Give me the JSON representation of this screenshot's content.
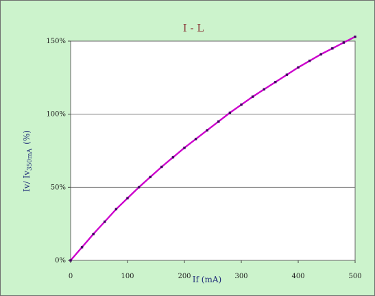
{
  "chart_data": {
    "type": "line",
    "title": "I - L",
    "xlabel": "If (mA)",
    "ylabel": {
      "main": "Iv/ Iv",
      "subscript": "350mA",
      "suffix": "(%)"
    },
    "xlim": [
      0,
      500
    ],
    "ylim": [
      0,
      150
    ],
    "x_ticks": [
      0,
      100,
      200,
      300,
      400,
      500
    ],
    "x_tick_labels": [
      "0",
      "100",
      "200",
      "300",
      "400",
      "500"
    ],
    "y_ticks": [
      0,
      50,
      100,
      150
    ],
    "y_tick_labels": [
      "0%",
      "50%",
      "100%",
      "150%"
    ],
    "grid": "horizontal",
    "series": [
      {
        "color": "#cc00cc",
        "marker_color": "#400060",
        "x": [
          0,
          20,
          40,
          60,
          80,
          100,
          120,
          140,
          160,
          180,
          200,
          220,
          240,
          260,
          280,
          300,
          320,
          340,
          360,
          380,
          400,
          420,
          440,
          460,
          480,
          500
        ],
        "y": [
          0,
          9,
          18,
          26.5,
          35,
          42.5,
          50,
          57,
          64,
          70.5,
          77,
          83,
          89,
          95,
          101,
          106.5,
          112,
          117,
          122,
          127,
          132,
          136.5,
          141,
          145,
          149,
          153
        ]
      }
    ]
  }
}
